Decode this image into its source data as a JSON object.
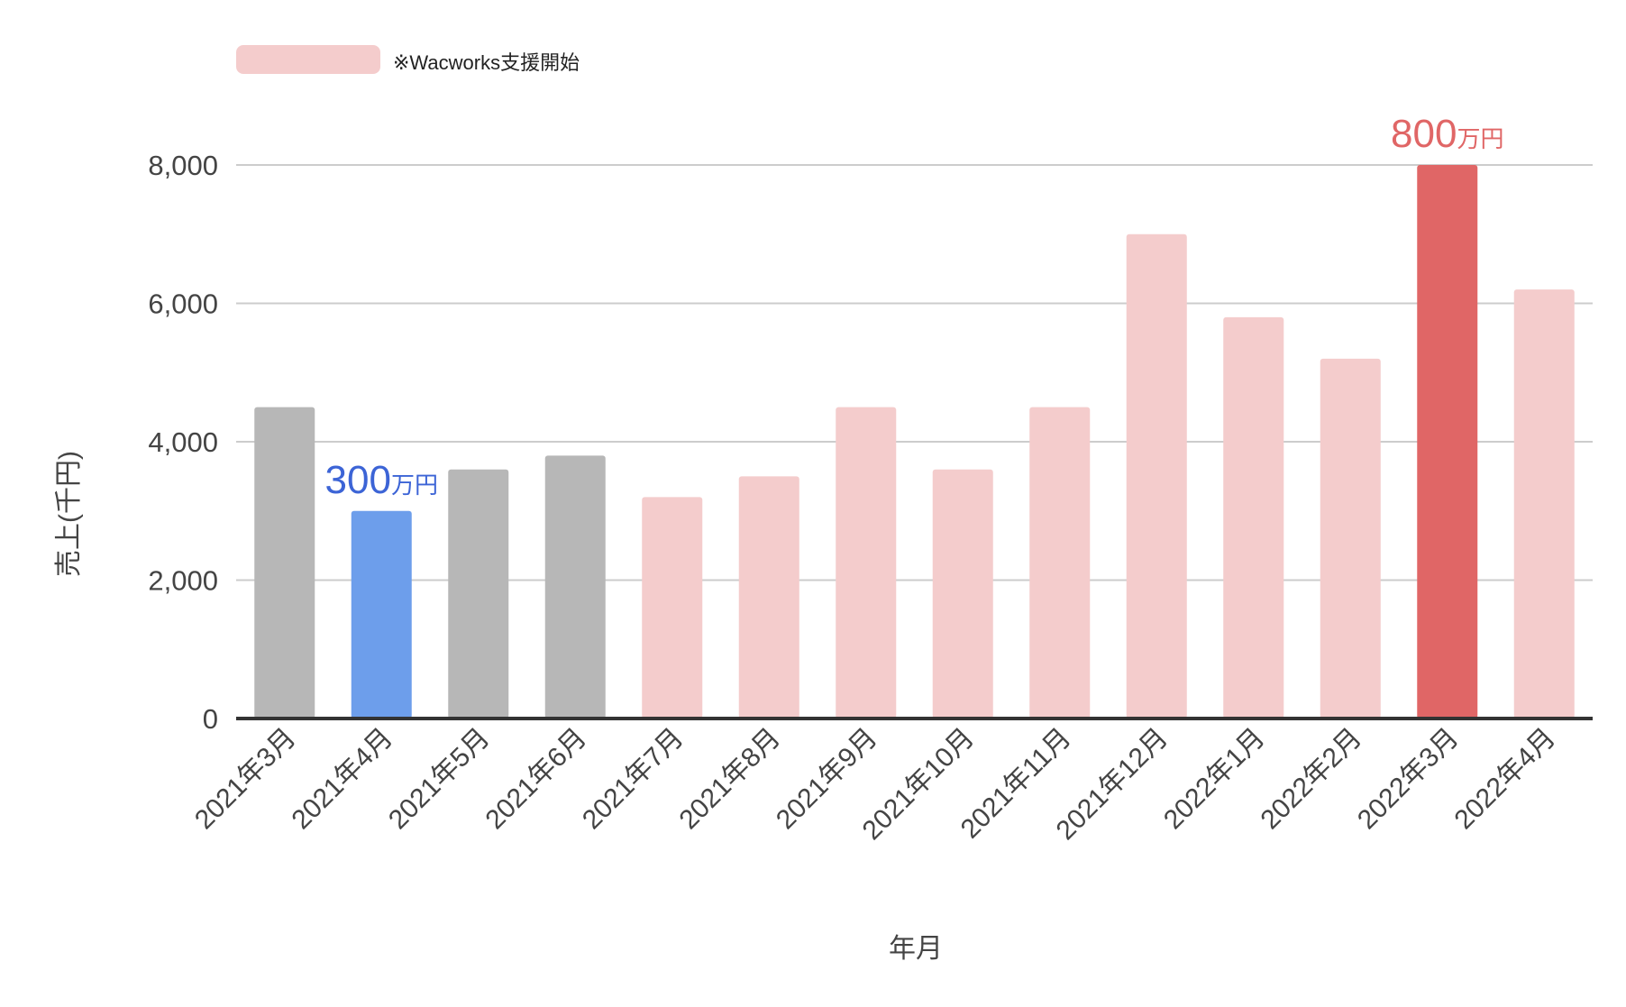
{
  "legend": {
    "label": "※Wacworks支援開始",
    "color": "#f4cccc"
  },
  "colors": {
    "gray": "#b7b7b7",
    "blue": "#6d9eeb",
    "pink": "#f4cccc",
    "red": "#e06666",
    "blue_text": "#3c64d6",
    "red_text": "#e06666",
    "tick_text": "#444444",
    "gridline": "#cccccc",
    "baseline": "#333333"
  },
  "annotations": [
    {
      "category_index": 1,
      "value_text": "300",
      "unit_text": "万円",
      "color_key": "blue_text"
    },
    {
      "category_index": 12,
      "value_text": "800",
      "unit_text": "万円",
      "color_key": "red_text"
    }
  ],
  "chart_data": {
    "type": "bar",
    "title": "",
    "xlabel": "年月",
    "ylabel": "売上(千円)",
    "ylim": [
      0,
      8000
    ],
    "yticks": [
      0,
      2000,
      4000,
      6000,
      8000
    ],
    "ytick_labels": [
      "0",
      "2,000",
      "4,000",
      "6,000",
      "8,000"
    ],
    "grid": true,
    "legend_position": "top-left",
    "categories": [
      "2021年3月",
      "2021年4月",
      "2021年5月",
      "2021年6月",
      "2021年7月",
      "2021年8月",
      "2021年9月",
      "2021年10月",
      "2021年11月",
      "2021年12月",
      "2022年1月",
      "2022年2月",
      "2022年3月",
      "2022年4月"
    ],
    "values": [
      4500,
      3000,
      3600,
      3800,
      3200,
      3500,
      4500,
      3600,
      4500,
      7000,
      5800,
      5200,
      8000,
      6200
    ],
    "bar_colors": [
      "gray",
      "blue",
      "gray",
      "gray",
      "pink",
      "pink",
      "pink",
      "pink",
      "pink",
      "pink",
      "pink",
      "pink",
      "red",
      "pink"
    ]
  }
}
